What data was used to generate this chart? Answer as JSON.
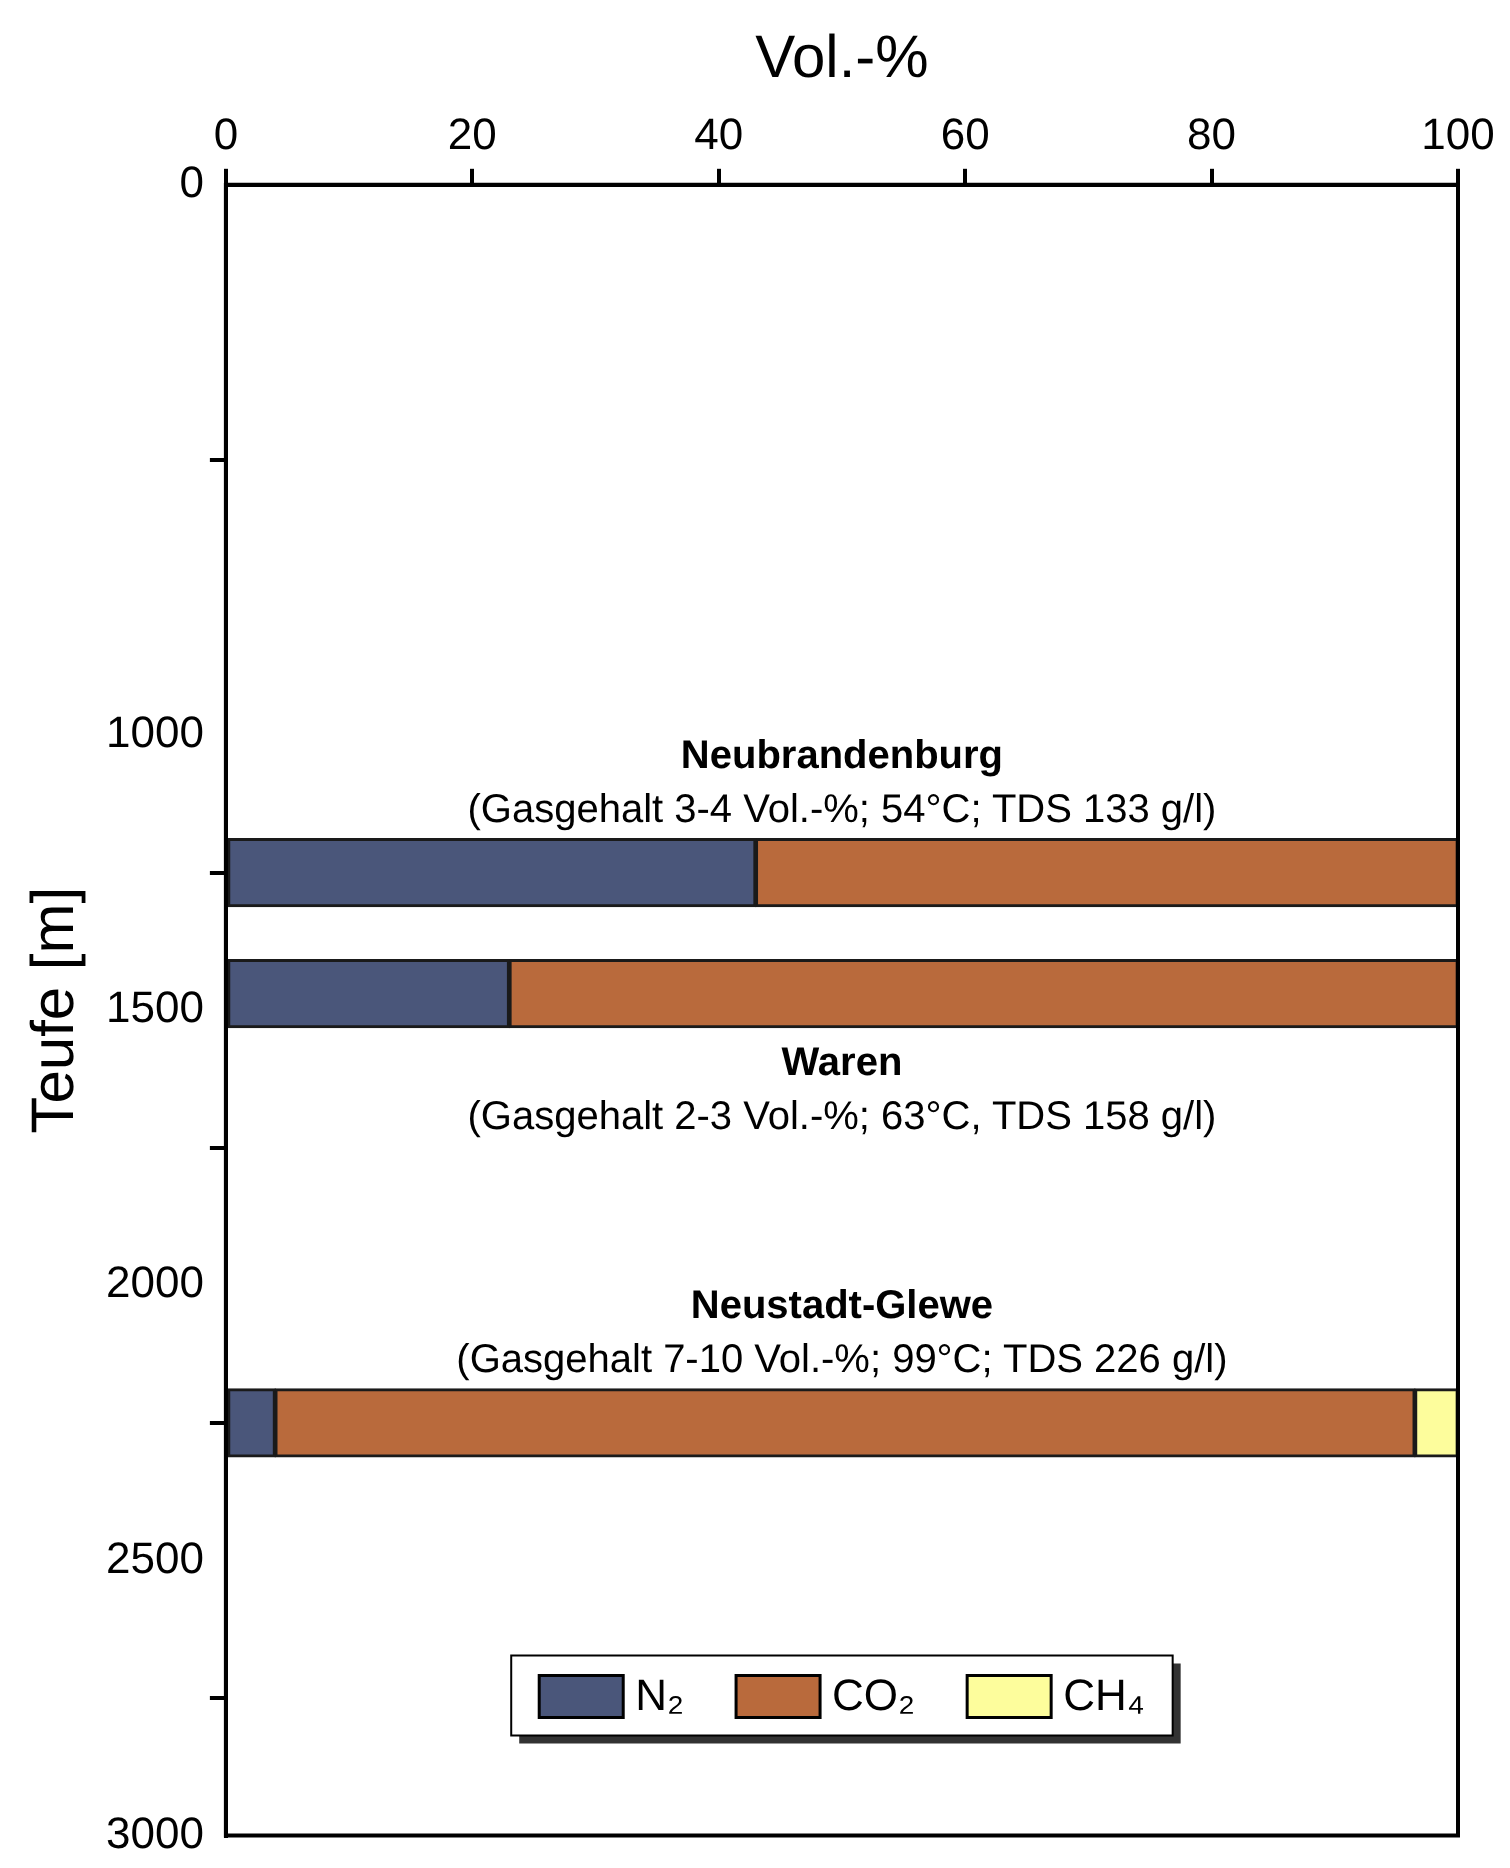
{
  "chart_data": {
    "type": "bar",
    "orientation": "horizontal",
    "stacked": true,
    "xlabel": "Vol.-%",
    "ylabel": "Teufe [m]",
    "x": [
      1250,
      1470,
      2250
    ],
    "series": [
      {
        "name": "N₂",
        "color": "#4a567a",
        "values": [
          43,
          23,
          4
        ]
      },
      {
        "name": "CO₂",
        "color": "#b96a3c",
        "values": [
          57,
          77,
          92.5
        ]
      },
      {
        "name": "CH₄",
        "color": "#fdfd9c",
        "values": [
          null,
          null,
          3.5
        ]
      }
    ],
    "xlim": [
      0,
      100
    ],
    "xticks": [
      0,
      20,
      40,
      60,
      80,
      100
    ],
    "ylim": [
      3000,
      0
    ],
    "yticks": [
      0,
      1000,
      1500,
      2000,
      2500,
      3000
    ],
    "annotations": [
      "Neubrandenburg",
      "(Gasgehalt 3-4 Vol.-%; 54°C; TDS 133 g/l)",
      "Waren",
      "(Gasgehalt 2-3 Vol.-%; 63°C, TDS 158 g/l)",
      "Neustadt-Glewe",
      "(Gasgehalt 7-10 Vol.-%; 99°C; TDS 226 g/l)"
    ],
    "legend": "bottom",
    "grid": false
  }
}
